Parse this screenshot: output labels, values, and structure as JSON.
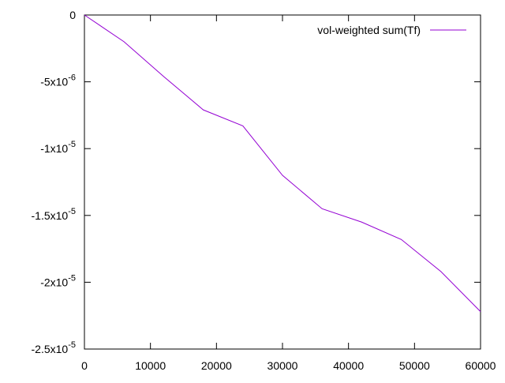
{
  "chart_data": {
    "type": "line",
    "title": "",
    "xlabel": "",
    "ylabel": "",
    "xlim": [
      0,
      60000
    ],
    "ylim": [
      -2.5e-05,
      0
    ],
    "grid": false,
    "legend_position": "top-right",
    "x_ticks": [
      {
        "value": 0,
        "label": "0"
      },
      {
        "value": 10000,
        "label": "10000"
      },
      {
        "value": 20000,
        "label": "20000"
      },
      {
        "value": 30000,
        "label": "30000"
      },
      {
        "value": 40000,
        "label": "40000"
      },
      {
        "value": 50000,
        "label": "50000"
      },
      {
        "value": 60000,
        "label": "60000"
      }
    ],
    "y_ticks": [
      {
        "value": 0,
        "mantissa": "0",
        "exponent": ""
      },
      {
        "value": -5e-06,
        "mantissa": "-5x10",
        "exponent": "-6"
      },
      {
        "value": -1e-05,
        "mantissa": "-1x10",
        "exponent": "-5"
      },
      {
        "value": -1.5e-05,
        "mantissa": "-1.5x10",
        "exponent": "-5"
      },
      {
        "value": -2e-05,
        "mantissa": "-2x10",
        "exponent": "-5"
      },
      {
        "value": -2.5e-05,
        "mantissa": "-2.5x10",
        "exponent": "-5"
      }
    ],
    "series": [
      {
        "name": "vol-weighted sum(Tf)",
        "color": "#9400d3",
        "x": [
          0,
          6000,
          12000,
          18000,
          24000,
          30000,
          36000,
          42000,
          48000,
          54000,
          60000
        ],
        "y": [
          0,
          -2e-06,
          -4.6e-06,
          -7.1e-06,
          -8.3e-06,
          -1.2e-05,
          -1.45e-05,
          -1.55e-05,
          -1.68e-05,
          -1.92e-05,
          -2.22e-05
        ]
      }
    ]
  }
}
